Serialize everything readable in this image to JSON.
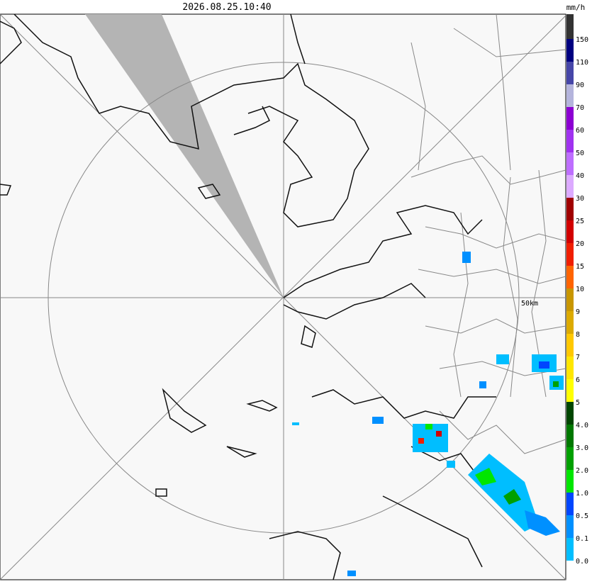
{
  "header": {
    "timestamp": "2026.08.25.10:40",
    "unit": "mm/h"
  },
  "map": {
    "range_label": "50km"
  },
  "legend": {
    "labels": [
      "150",
      "110",
      "90",
      "70",
      "60",
      "50",
      "40",
      "30",
      "25",
      "20",
      "15",
      "10",
      "9",
      "8",
      "7",
      "6",
      "5",
      "4.0",
      "3.0",
      "2.0",
      "1.0",
      "0.5",
      "0.1",
      "0.0"
    ],
    "colors": [
      "#333333",
      "#000080",
      "#4646a8",
      "#b4b4dc",
      "#8c00d2",
      "#a032f0",
      "#be6eff",
      "#dcaaff",
      "#a00000",
      "#d20000",
      "#f01e00",
      "#ff6400",
      "#c89600",
      "#dcaa00",
      "#ffc800",
      "#ffe600",
      "#ffff00",
      "#004600",
      "#007800",
      "#00a000",
      "#00e600",
      "#0046ff",
      "#0090ff",
      "#00beff",
      "#ffffff"
    ]
  }
}
